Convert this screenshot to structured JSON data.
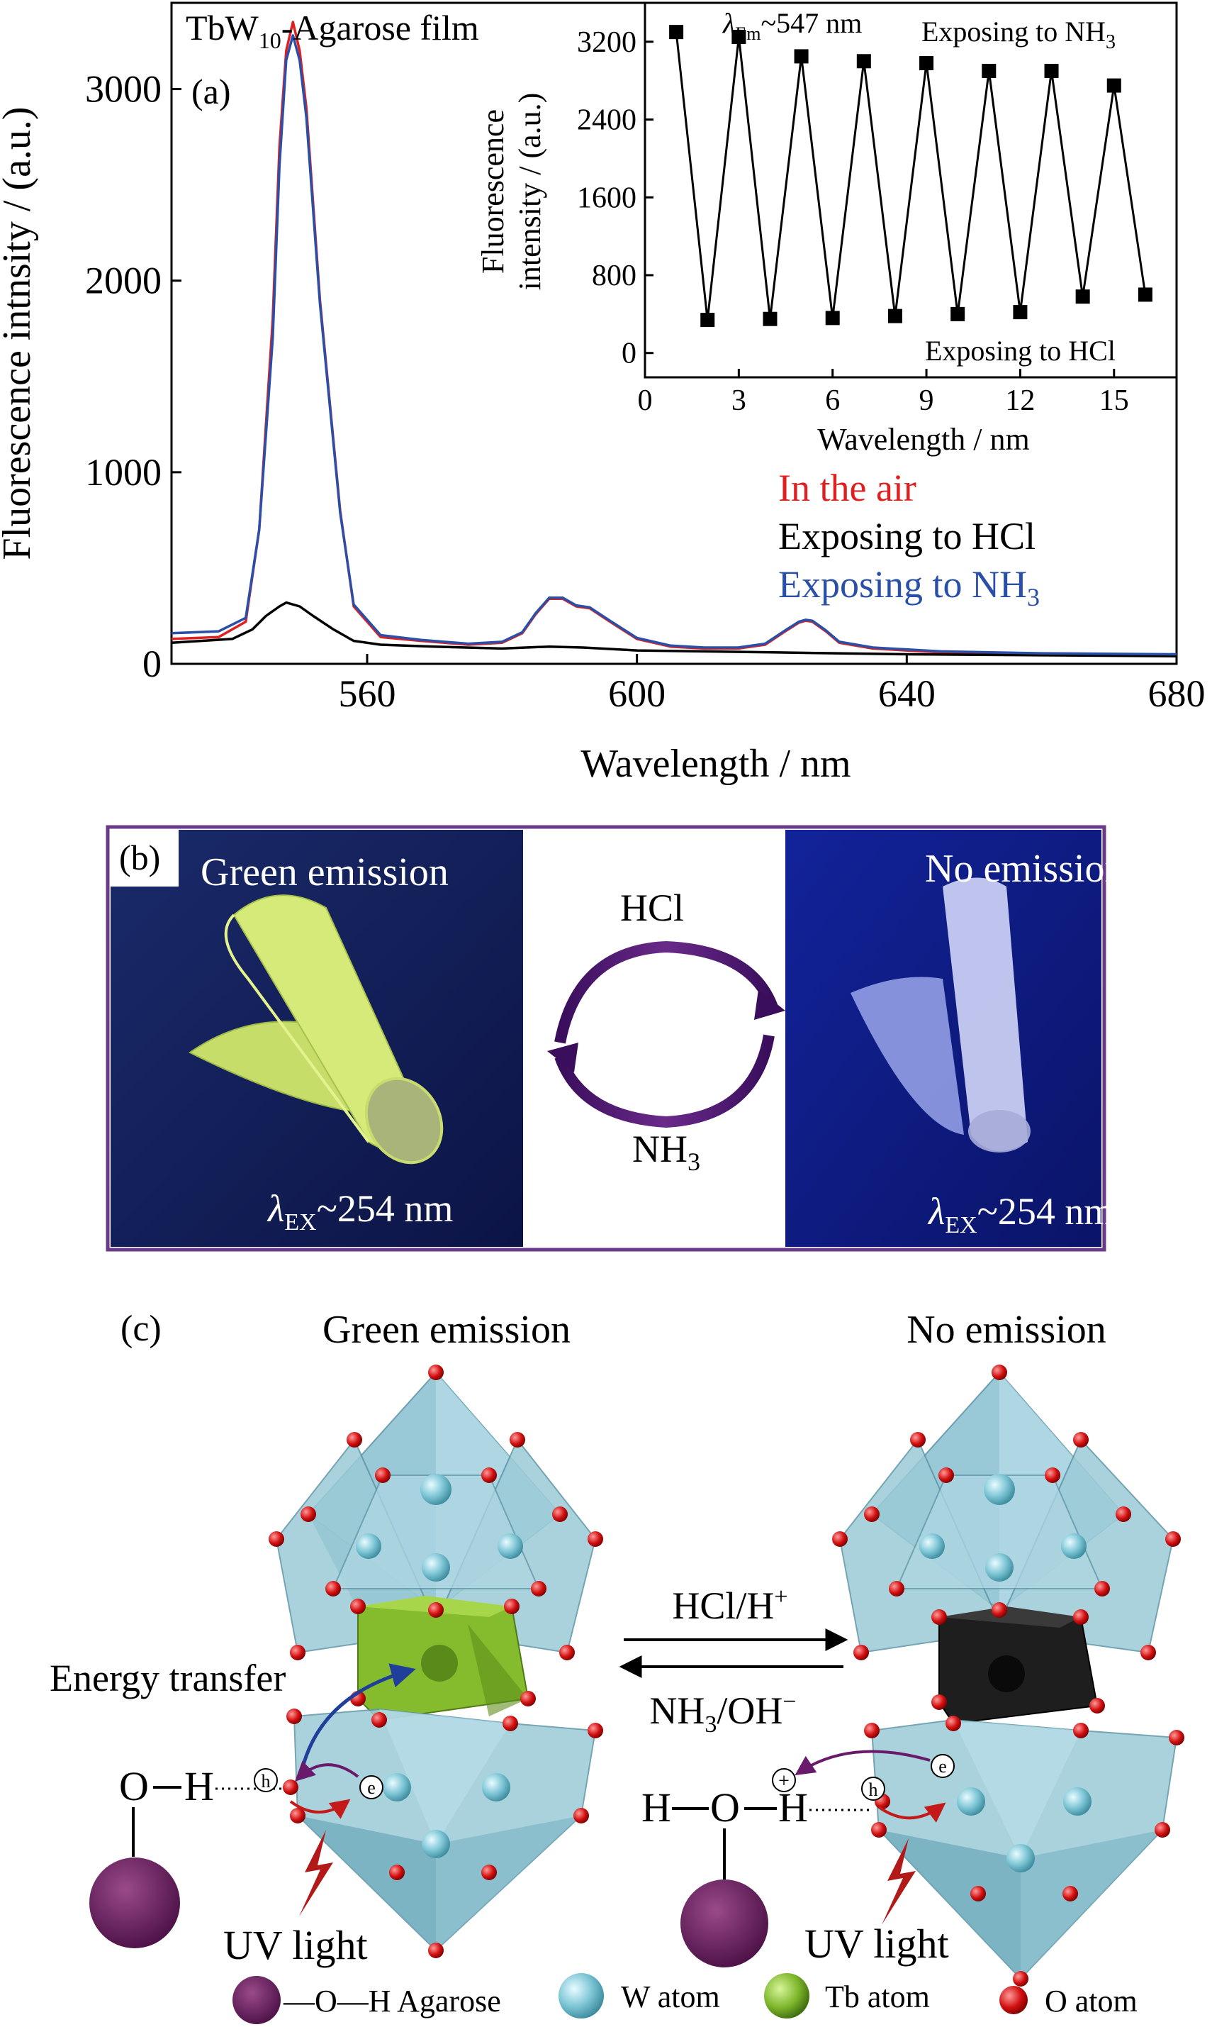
{
  "panel_a": {
    "title_main": "TbW",
    "title_sub": "10",
    "title_rest": "-Agarose film",
    "label": "(a)",
    "xlabel": "Wavelength / nm",
    "ylabel": "Fluorescence intnsity / (a.u.)",
    "legend": {
      "air": "In the air",
      "hcl": "Exposing to HCl",
      "nh3_main": "Exposing to NH",
      "nh3_sub": "3"
    },
    "colors": {
      "air": "#e02020",
      "hcl": "#000000",
      "nh3": "#2a4fa8"
    },
    "chart_data": {
      "type": "line",
      "xlim": [
        531,
        680
      ],
      "ylim": [
        0,
        3450
      ],
      "xticks": [
        560,
        600,
        640,
        680
      ],
      "yticks": [
        0,
        1000,
        2000,
        3000
      ],
      "series": [
        {
          "name": "In the air",
          "color": "#e02020",
          "x": [
            531,
            538,
            542,
            544,
            546,
            547,
            548,
            549,
            550,
            551,
            553,
            556,
            558,
            562,
            568,
            575,
            580,
            583,
            585,
            587,
            589,
            591,
            593,
            596,
            600,
            605,
            610,
            615,
            619,
            622,
            624,
            625,
            626,
            628,
            630,
            635,
            645,
            660,
            680
          ],
          "y": [
            130,
            140,
            220,
            700,
            1800,
            2700,
            3200,
            3350,
            3200,
            2900,
            1900,
            800,
            300,
            140,
            120,
            100,
            110,
            160,
            260,
            340,
            340,
            300,
            290,
            220,
            130,
            90,
            80,
            80,
            100,
            170,
            215,
            225,
            220,
            170,
            110,
            80,
            60,
            50,
            45
          ]
        },
        {
          "name": "Exposing to HCl",
          "color": "#000000",
          "x": [
            531,
            540,
            543,
            545,
            547,
            548,
            550,
            552,
            555,
            558,
            562,
            570,
            580,
            587,
            592,
            600,
            620,
            640,
            680
          ],
          "y": [
            110,
            130,
            180,
            250,
            300,
            320,
            300,
            250,
            180,
            120,
            100,
            90,
            80,
            90,
            85,
            70,
            60,
            50,
            40
          ]
        },
        {
          "name": "Exposing to NH3",
          "color": "#2a4fa8",
          "x": [
            531,
            538,
            542,
            544,
            546,
            547,
            548,
            549,
            550,
            551,
            553,
            556,
            558,
            562,
            568,
            575,
            580,
            583,
            585,
            587,
            589,
            591,
            593,
            596,
            600,
            605,
            610,
            615,
            619,
            622,
            624,
            625,
            626,
            628,
            630,
            635,
            645,
            660,
            680
          ],
          "y": [
            160,
            170,
            240,
            700,
            1700,
            2600,
            3150,
            3280,
            3150,
            2850,
            1880,
            790,
            310,
            150,
            125,
            105,
            115,
            165,
            265,
            345,
            345,
            305,
            295,
            225,
            135,
            95,
            85,
            85,
            105,
            175,
            220,
            230,
            225,
            175,
            115,
            85,
            65,
            55,
            50
          ]
        }
      ]
    },
    "inset": {
      "annot_lambda": "λ",
      "annot_lambda_sub": "Em",
      "annot_rest": "~547 nm",
      "annot_nh3_main": "Exposing to NH",
      "annot_nh3_sub": "3",
      "annot_hcl": "Exposing to HCl",
      "xlabel": "Wavelength / nm",
      "ylabel_line1": "Fluorescence",
      "ylabel_line2": "intensity / (a.u.)",
      "chart_data": {
        "type": "line",
        "xlim": [
          0,
          17
        ],
        "ylim": [
          -250,
          3600
        ],
        "xticks": [
          0,
          3,
          6,
          9,
          12,
          15
        ],
        "yticks": [
          0,
          800,
          1600,
          2400,
          3200
        ],
        "x": [
          1,
          2,
          3,
          4,
          5,
          6,
          7,
          8,
          9,
          10,
          11,
          12,
          13,
          14,
          15,
          16
        ],
        "y": [
          3300,
          340,
          3250,
          350,
          3050,
          360,
          3000,
          380,
          2980,
          400,
          2900,
          420,
          2900,
          580,
          2750,
          600
        ]
      }
    }
  },
  "panel_b": {
    "label": "(b)",
    "left_title": "Green emission",
    "right_title": "No emission",
    "top_arrow": "HCl",
    "bottom_arrow_main": "NH",
    "bottom_arrow_sub": "3",
    "lambda": "λ",
    "lambda_sub": "EX",
    "lambda_rest": "~254 nm"
  },
  "panel_c": {
    "label": "(c)",
    "left_title": "Green emission",
    "right_title": "No emission",
    "forward_main": "HCl/H",
    "forward_sup": "+",
    "reverse_main": "NH",
    "reverse_sub": "3",
    "reverse_rest": "/OH",
    "reverse_sup": "−",
    "energy_transfer": "Energy transfer",
    "uv_left": "UV light",
    "uv_right": "UV light",
    "oh_left": "O",
    "h_left": "H",
    "hoh_h1": "H",
    "hoh_o": "O",
    "hoh_h2": "H",
    "h_circle": "h",
    "e_circle": "e",
    "plus_circle": "+",
    "legend": {
      "agarose": "—O—H Agarose",
      "w": "W atom",
      "tb": "Tb atom",
      "o": "O atom"
    }
  }
}
